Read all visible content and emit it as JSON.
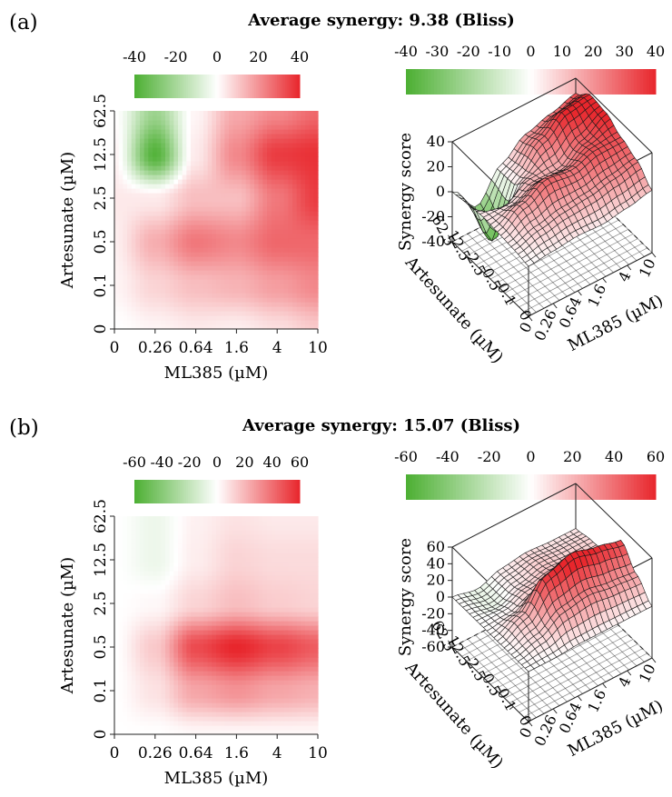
{
  "colors": {
    "negative": "#4caf32",
    "neutral": "#ffffff",
    "positive": "#e8262c"
  },
  "chart_data": [
    {
      "type": "heatmap",
      "panel": "(a)",
      "title": "Average synergy: 9.38 (Bliss)",
      "xlabel": "ML385 (µM)",
      "ylabel": "Artesunate (µM)",
      "x_ticks": [
        "0",
        "0.26",
        "0.64",
        "1.6",
        "4",
        "10"
      ],
      "y_ticks": [
        "0",
        "0.1",
        "0.5",
        "2.5",
        "12.5",
        "62.5"
      ],
      "colorbar": {
        "ticks": [
          "-40",
          "-20",
          "0",
          "20",
          "40"
        ],
        "range": [
          -40,
          40
        ]
      },
      "values": [
        [
          0,
          2,
          4,
          3,
          6,
          10
        ],
        [
          2,
          8,
          12,
          14,
          18,
          22
        ],
        [
          3,
          15,
          25,
          22,
          28,
          28
        ],
        [
          4,
          4,
          12,
          12,
          25,
          36
        ],
        [
          2,
          -38,
          4,
          22,
          36,
          38
        ],
        [
          0,
          -22,
          2,
          16,
          22,
          28
        ]
      ],
      "surface": {
        "zlabel": "Synergy score",
        "xlabel": "ML385 (µM)",
        "ylabel": "Artesunate (µM)",
        "z_ticks": [
          "-40",
          "-20",
          "0",
          "20",
          "40"
        ],
        "zlim": [
          -40,
          40
        ],
        "x_ticks": [
          "0",
          "0.26",
          "0.64",
          "1.6",
          "4",
          "10"
        ],
        "y_ticks": [
          "0",
          "0.1",
          "0.5",
          "2.5",
          "12.5",
          "62.5"
        ],
        "colorbar": {
          "ticks": [
            "-40",
            "-30",
            "-20",
            "-10",
            "0",
            "10",
            "20",
            "30",
            "40"
          ],
          "range": [
            -40,
            40
          ]
        }
      }
    },
    {
      "type": "heatmap",
      "panel": "(b)",
      "title": "Average synergy: 15.07 (Bliss)",
      "xlabel": "ML385 (µM)",
      "ylabel": "Artesunate (µM)",
      "x_ticks": [
        "0",
        "0.26",
        "0.64",
        "1.6",
        "4",
        "10"
      ],
      "y_ticks": [
        "0",
        "0.1",
        "0.5",
        "2.5",
        "12.5",
        "62.5"
      ],
      "colorbar": {
        "ticks": [
          "-60",
          "-40",
          "-20",
          "0",
          "20",
          "40",
          "60"
        ],
        "range": [
          -60,
          60
        ]
      },
      "values": [
        [
          0,
          0,
          2,
          2,
          2,
          2
        ],
        [
          0,
          8,
          25,
          30,
          25,
          22
        ],
        [
          0,
          15,
          50,
          60,
          52,
          45
        ],
        [
          0,
          2,
          12,
          18,
          14,
          12
        ],
        [
          0,
          -6,
          5,
          12,
          10,
          10
        ],
        [
          0,
          -6,
          4,
          8,
          6,
          6
        ]
      ],
      "surface": {
        "zlabel": "Synergy score",
        "xlabel": "ML385 (µM)",
        "ylabel": "Artesunate (µM)",
        "z_ticks": [
          "-60",
          "-40",
          "-20",
          "0",
          "20",
          "40",
          "60"
        ],
        "zlim": [
          -60,
          60
        ],
        "x_ticks": [
          "0",
          "0.26",
          "0.64",
          "1.6",
          "4",
          "10"
        ],
        "y_ticks": [
          "0",
          "0.1",
          "0.5",
          "2.5",
          "12.5",
          "62.5"
        ],
        "colorbar": {
          "ticks": [
            "-60",
            "-40",
            "-20",
            "0",
            "20",
            "40",
            "60"
          ],
          "range": [
            -60,
            60
          ]
        }
      }
    }
  ]
}
